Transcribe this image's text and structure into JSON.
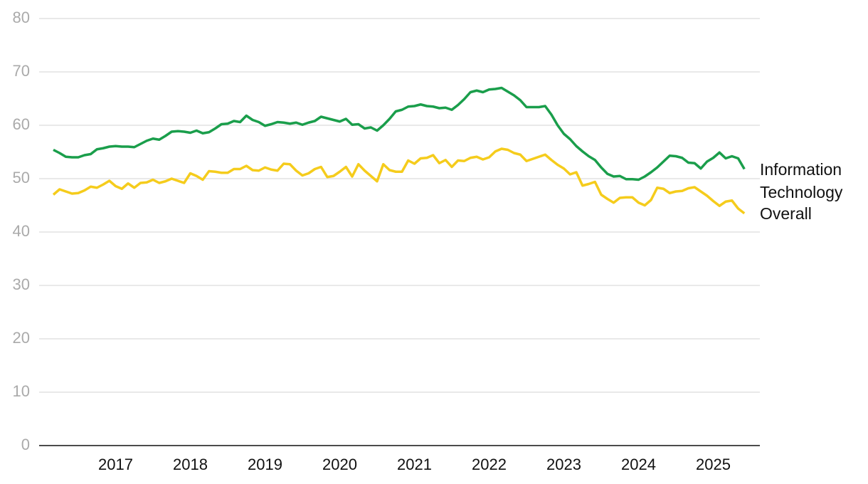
{
  "chart_data": {
    "type": "line",
    "categories": [
      null,
      null,
      null,
      null,
      null,
      null,
      null,
      null,
      null,
      null,
      "2017",
      null,
      null,
      null,
      null,
      null,
      null,
      null,
      null,
      null,
      null,
      null,
      "2018",
      null,
      null,
      null,
      null,
      null,
      null,
      null,
      null,
      null,
      null,
      null,
      "2019",
      null,
      null,
      null,
      null,
      null,
      null,
      null,
      null,
      null,
      null,
      null,
      "2020",
      null,
      null,
      null,
      null,
      null,
      null,
      null,
      null,
      null,
      null,
      null,
      "2021",
      null,
      null,
      null,
      null,
      null,
      null,
      null,
      null,
      null,
      null,
      null,
      "2022",
      null,
      null,
      null,
      null,
      null,
      null,
      null,
      null,
      null,
      null,
      null,
      "2023",
      null,
      null,
      null,
      null,
      null,
      null,
      null,
      null,
      null,
      null,
      null,
      "2024",
      null,
      null,
      null,
      null,
      null,
      null,
      null,
      null,
      null,
      null,
      null,
      "2025",
      null,
      null,
      null,
      null,
      null
    ],
    "series": [
      {
        "name": "Information Technology",
        "color": "#1a9e4b",
        "values": [
          55.4,
          54.8,
          54.1,
          54.0,
          54.0,
          54.4,
          54.6,
          55.5,
          55.7,
          56.0,
          56.1,
          56.0,
          56.0,
          55.9,
          56.5,
          57.1,
          57.5,
          57.3,
          58.0,
          58.8,
          58.9,
          58.8,
          58.6,
          59.0,
          58.5,
          58.7,
          59.4,
          60.2,
          60.3,
          60.8,
          60.6,
          61.8,
          61.0,
          60.6,
          59.9,
          60.2,
          60.6,
          60.5,
          60.3,
          60.5,
          60.1,
          60.5,
          60.8,
          61.6,
          61.3,
          61.0,
          60.7,
          61.2,
          60.1,
          60.2,
          59.4,
          59.6,
          59.0,
          60.0,
          61.2,
          62.6,
          62.9,
          63.5,
          63.6,
          63.9,
          63.6,
          63.5,
          63.2,
          63.3,
          62.9,
          63.8,
          64.9,
          66.2,
          66.5,
          66.2,
          66.7,
          66.8,
          67.0,
          66.3,
          65.6,
          64.7,
          63.4,
          63.4,
          63.4,
          63.6,
          62.0,
          60.0,
          58.4,
          57.4,
          56.1,
          55.1,
          54.2,
          53.5,
          52.1,
          50.9,
          50.4,
          50.5,
          49.9,
          49.9,
          49.8,
          50.4,
          51.2,
          52.1,
          53.2,
          54.3,
          54.2,
          53.9,
          53.0,
          52.9,
          51.9,
          53.2,
          53.9,
          54.9,
          53.8,
          54.2,
          53.8,
          51.8
        ]
      },
      {
        "name": "Overall",
        "color": "#f5cc1c",
        "values": [
          47.0,
          48.0,
          47.6,
          47.2,
          47.3,
          47.8,
          48.5,
          48.3,
          48.9,
          49.6,
          48.6,
          48.1,
          49.1,
          48.3,
          49.2,
          49.3,
          49.8,
          49.2,
          49.5,
          50.0,
          49.6,
          49.2,
          51.0,
          50.5,
          49.8,
          51.4,
          51.3,
          51.1,
          51.1,
          51.8,
          51.8,
          52.4,
          51.6,
          51.5,
          52.1,
          51.7,
          51.5,
          52.8,
          52.7,
          51.5,
          50.6,
          51.0,
          51.8,
          52.2,
          50.3,
          50.5,
          51.3,
          52.2,
          50.4,
          52.7,
          51.5,
          50.5,
          49.5,
          52.7,
          51.6,
          51.3,
          51.3,
          53.4,
          52.8,
          53.8,
          53.9,
          54.4,
          52.9,
          53.5,
          52.2,
          53.4,
          53.3,
          53.9,
          54.1,
          53.6,
          54.0,
          55.1,
          55.6,
          55.4,
          54.8,
          54.5,
          53.3,
          53.7,
          54.1,
          54.5,
          53.5,
          52.6,
          51.9,
          50.8,
          51.2,
          48.7,
          49.0,
          49.4,
          47.0,
          46.2,
          45.5,
          46.4,
          46.5,
          46.5,
          45.5,
          45.0,
          46.0,
          48.3,
          48.1,
          47.3,
          47.6,
          47.7,
          48.2,
          48.4,
          47.6,
          46.8,
          45.8,
          44.9,
          45.7,
          45.9,
          44.4,
          43.5
        ]
      }
    ],
    "ylim": [
      0,
      80
    ],
    "yticks": [
      0,
      10,
      20,
      30,
      40,
      50,
      60,
      70,
      80
    ],
    "grid": true
  }
}
